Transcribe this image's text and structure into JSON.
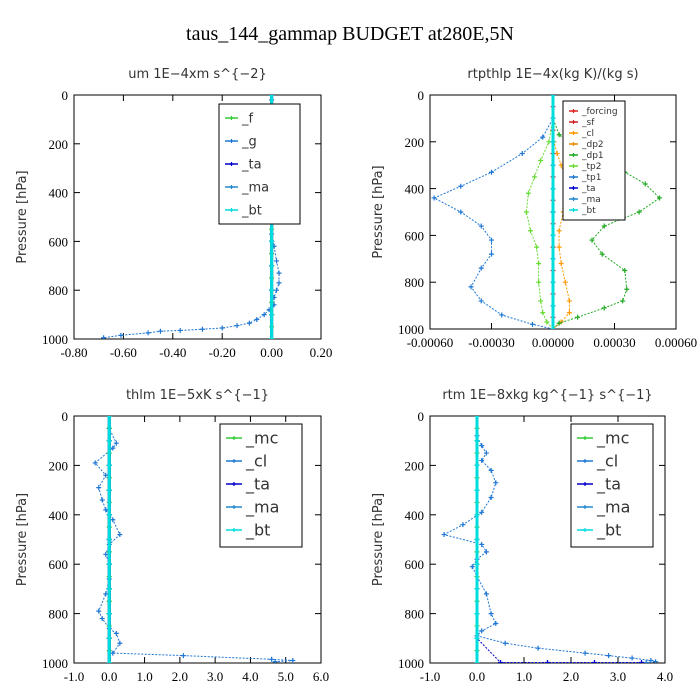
{
  "title": "taus_144_gammap  BUDGET at280E,5N",
  "chart_data": [
    {
      "type": "line",
      "title": "um   1E−4xm s^{−2}",
      "ylabel": "Pressure [hPa]",
      "xlim": [
        -0.8,
        0.2
      ],
      "ylim": [
        1000,
        0
      ],
      "xticks": [
        -0.8,
        -0.6,
        -0.4,
        -0.2,
        0.0,
        0.2
      ],
      "xtick_labels": [
        "-0.80",
        "-0.60",
        "-0.40",
        "-0.20",
        "0.00",
        "0.20"
      ],
      "yticks": [
        0,
        200,
        400,
        600,
        800,
        1000
      ],
      "ytick_labels": [
        "0",
        "200",
        "400",
        "600",
        "800",
        "1000"
      ],
      "legend": "top-right",
      "series": [
        {
          "name": "_f",
          "color": "#33cc33",
          "x": [
            0,
            0,
            0,
            0,
            0,
            0,
            0,
            0,
            0,
            0,
            0,
            0,
            0,
            0,
            0,
            0,
            0,
            0,
            0,
            0,
            0
          ],
          "y": [
            0,
            50,
            100,
            150,
            200,
            250,
            300,
            350,
            400,
            450,
            500,
            550,
            600,
            650,
            700,
            750,
            800,
            850,
            900,
            950,
            1000
          ]
        },
        {
          "name": "_g",
          "color": "#1f77d4",
          "x": [
            0,
            0,
            0,
            0.01,
            -0.03,
            0.02,
            -0.01,
            0.04,
            0.06,
            0.05,
            0.02,
            0.01,
            0.01,
            0,
            0.01,
            0,
            0,
            0.01,
            0.02,
            0.03,
            0.03,
            0.02,
            0.01,
            0.01,
            -0.01,
            -0.03,
            -0.06,
            -0.09,
            -0.14,
            -0.2,
            -0.28,
            -0.37,
            -0.45,
            -0.5,
            -0.61,
            -0.68
          ],
          "y": [
            0,
            20,
            50,
            80,
            110,
            130,
            150,
            180,
            210,
            240,
            280,
            320,
            370,
            420,
            470,
            520,
            570,
            620,
            680,
            730,
            770,
            800,
            830,
            860,
            880,
            900,
            920,
            935,
            945,
            955,
            960,
            965,
            968,
            975,
            985,
            995
          ]
        },
        {
          "name": "_ta",
          "color": "#0000cc",
          "x": [
            0,
            0,
            0,
            0,
            0,
            0,
            0,
            0,
            0,
            0,
            0
          ],
          "y": [
            0,
            100,
            200,
            300,
            400,
            500,
            600,
            700,
            800,
            900,
            1000
          ]
        },
        {
          "name": "_ma",
          "color": "#2288cc",
          "x": [
            0,
            0,
            0,
            0,
            0,
            0,
            0,
            0,
            0,
            0,
            0
          ],
          "y": [
            0,
            100,
            200,
            300,
            400,
            500,
            600,
            700,
            800,
            900,
            1000
          ]
        },
        {
          "name": "_bt",
          "color": "#00dddd",
          "x": [
            0,
            0,
            0,
            0,
            0,
            0,
            0,
            0,
            0,
            0,
            0
          ],
          "y": [
            0,
            100,
            200,
            300,
            400,
            500,
            600,
            700,
            800,
            900,
            1000
          ]
        }
      ]
    },
    {
      "type": "line",
      "title": "rtpthlp   1E−4x(kg K)/(kg s)",
      "ylabel": "Pressure [hPa]",
      "xlim": [
        -0.0006,
        0.0006
      ],
      "ylim": [
        1000,
        0
      ],
      "xticks": [
        -0.0006,
        -0.0003,
        0.0,
        0.0003,
        0.0006
      ],
      "xtick_labels": [
        "-0.00060",
        "-0.00030",
        "0.00000",
        "0.00030",
        "0.00060"
      ],
      "yticks": [
        0,
        200,
        400,
        600,
        800,
        1000
      ],
      "ytick_labels": [
        "0",
        "200",
        "400",
        "600",
        "800",
        "1000"
      ],
      "legend": "top-right",
      "series": [
        {
          "name": "_forcing",
          "color": "#dd2222",
          "x": [
            0,
            0,
            0,
            0,
            0,
            0,
            0,
            0,
            0,
            0,
            0,
            0,
            0,
            0,
            0,
            0,
            0,
            0,
            0,
            0,
            0
          ],
          "y": [
            0,
            50,
            100,
            150,
            200,
            250,
            300,
            350,
            400,
            450,
            500,
            550,
            600,
            650,
            700,
            750,
            800,
            850,
            900,
            950,
            1000
          ]
        },
        {
          "name": "_sf",
          "color": "#cc2222",
          "x": [
            0,
            0,
            0,
            0,
            0,
            0,
            0,
            0,
            0,
            0,
            0
          ],
          "y": [
            0,
            100,
            200,
            300,
            400,
            500,
            600,
            700,
            800,
            900,
            1000
          ]
        },
        {
          "name": "_cl",
          "color": "#ff9900",
          "x": [
            0,
            0,
            5e-06,
            2e-05,
            4e-05,
            6e-05,
            7e-05,
            5e-05,
            3e-05,
            3e-05,
            4e-05,
            6e-05,
            8e-05,
            8e-05,
            4e-05,
            0
          ],
          "y": [
            0,
            100,
            200,
            250,
            300,
            350,
            420,
            500,
            580,
            650,
            720,
            800,
            880,
            930,
            970,
            1000
          ]
        },
        {
          "name": "_dp2",
          "color": "#ee8800",
          "x": [
            0,
            0,
            0,
            0,
            0,
            0,
            0,
            0,
            0,
            0,
            0
          ],
          "y": [
            0,
            100,
            200,
            300,
            400,
            500,
            600,
            700,
            800,
            900,
            1000
          ]
        },
        {
          "name": "_dp1",
          "color": "#22aa22",
          "x": [
            0,
            0,
            3e-05,
            0.0001,
            0.00022,
            0.00035,
            0.00045,
            0.00052,
            0.00042,
            0.00025,
            0.00019,
            0.00024,
            0.00035,
            0.00036,
            0.00034,
            0.00025,
            0.00012,
            3e-05,
            0
          ],
          "y": [
            0,
            100,
            170,
            220,
            280,
            330,
            380,
            440,
            500,
            560,
            620,
            680,
            750,
            830,
            880,
            910,
            950,
            975,
            1000
          ]
        },
        {
          "name": "_tp2",
          "color": "#66dd33",
          "x": [
            0,
            0,
            -2e-05,
            -6e-05,
            -9e-05,
            -0.00012,
            -0.00013,
            -0.00011,
            -8e-05,
            -7e-05,
            -7e-05,
            -6e-05,
            -5e-05,
            -3e-05,
            0
          ],
          "y": [
            0,
            100,
            200,
            280,
            350,
            420,
            500,
            580,
            650,
            720,
            800,
            880,
            930,
            970,
            1000
          ]
        },
        {
          "name": "_tp1",
          "color": "#1f77d4",
          "x": [
            0,
            0,
            -5e-05,
            -0.00015,
            -0.0003,
            -0.00045,
            -0.00058,
            -0.00045,
            -0.00035,
            -0.0003,
            -0.0003,
            -0.00035,
            -0.0004,
            -0.00035,
            -0.00025,
            -0.0001,
            0
          ],
          "y": [
            0,
            100,
            180,
            250,
            330,
            390,
            440,
            500,
            560,
            620,
            680,
            740,
            820,
            880,
            940,
            980,
            1000
          ]
        },
        {
          "name": "_ta",
          "color": "#0000cc",
          "x": [
            0,
            0,
            0,
            0,
            0,
            0,
            0,
            0,
            0,
            0,
            0
          ],
          "y": [
            0,
            100,
            200,
            300,
            400,
            500,
            600,
            700,
            800,
            900,
            1000
          ]
        },
        {
          "name": "_ma",
          "color": "#2288cc",
          "x": [
            0,
            0,
            0,
            0,
            0,
            0,
            0,
            0,
            0,
            0,
            0
          ],
          "y": [
            0,
            100,
            200,
            300,
            400,
            500,
            600,
            700,
            800,
            900,
            1000
          ]
        },
        {
          "name": "_bt",
          "color": "#00dddd",
          "x": [
            0,
            0,
            0,
            0,
            0,
            0,
            0,
            0,
            0,
            0,
            0
          ],
          "y": [
            0,
            100,
            200,
            300,
            400,
            500,
            600,
            700,
            800,
            900,
            1000
          ]
        }
      ]
    },
    {
      "type": "line",
      "title": "thlm   1E−5xK s^{−1}",
      "ylabel": "Pressure [hPa]",
      "xlim": [
        -1.0,
        6.0
      ],
      "ylim": [
        1000,
        0
      ],
      "xticks": [
        -1,
        0,
        1,
        2,
        3,
        4,
        5,
        6
      ],
      "xtick_labels": [
        "-1.0",
        "0.0",
        "1.0",
        "2.0",
        "3.0",
        "4.0",
        "5.0",
        "6.0"
      ],
      "yticks": [
        0,
        200,
        400,
        600,
        800,
        1000
      ],
      "ytick_labels": [
        "0",
        "200",
        "400",
        "600",
        "800",
        "1000"
      ],
      "legend": "top-right",
      "series": [
        {
          "name": "_mc",
          "color": "#33cc33",
          "x": [
            0,
            0,
            0,
            0,
            0,
            0,
            0,
            0,
            0,
            0,
            0,
            0,
            0,
            0,
            0,
            0,
            0,
            0,
            0,
            0,
            0
          ],
          "y": [
            0,
            50,
            100,
            150,
            200,
            250,
            300,
            350,
            400,
            450,
            500,
            550,
            600,
            650,
            700,
            750,
            800,
            850,
            900,
            950,
            1000
          ]
        },
        {
          "name": "_cl",
          "color": "#1f77d4",
          "x": [
            0,
            0,
            0.2,
            0.1,
            -0.4,
            -0.1,
            -0.3,
            -0.2,
            -0.1,
            0.1,
            0.3,
            0,
            -0.1,
            0,
            0,
            -0.1,
            -0.3,
            -0.2,
            0,
            0.2,
            0.3,
            0.1,
            2.1,
            4.6,
            5.2,
            4.7
          ],
          "y": [
            0,
            50,
            110,
            130,
            190,
            240,
            290,
            340,
            380,
            420,
            480,
            520,
            560,
            600,
            660,
            720,
            790,
            820,
            860,
            880,
            920,
            960,
            970,
            985,
            990,
            995
          ]
        },
        {
          "name": "_ta",
          "color": "#0000cc",
          "x": [
            0,
            0,
            0,
            0,
            0,
            0,
            0,
            0,
            0,
            0,
            0
          ],
          "y": [
            0,
            100,
            200,
            300,
            400,
            500,
            600,
            700,
            800,
            900,
            1000
          ]
        },
        {
          "name": "_ma",
          "color": "#2288cc",
          "x": [
            0,
            0,
            0,
            0,
            0,
            0,
            0,
            0,
            0,
            0,
            0
          ],
          "y": [
            0,
            100,
            200,
            300,
            400,
            500,
            600,
            700,
            800,
            900,
            1000
          ]
        },
        {
          "name": "_bt",
          "color": "#00dddd",
          "x": [
            0,
            0,
            0,
            0,
            0,
            0,
            0,
            0,
            0,
            0,
            0
          ],
          "y": [
            0,
            100,
            200,
            300,
            400,
            500,
            600,
            700,
            800,
            900,
            1000
          ]
        }
      ]
    },
    {
      "type": "line",
      "title": "rtm   1E−8xkg kg^{−1} s^{−1}",
      "ylabel": "Pressure [hPa]",
      "xlim": [
        -1.0,
        4.0
      ],
      "ylim": [
        1000,
        0
      ],
      "xticks": [
        -1,
        0,
        1,
        2,
        3,
        4
      ],
      "xtick_labels": [
        "-1.0",
        "0.0",
        "1.0",
        "2.0",
        "3.0",
        "4.0"
      ],
      "yticks": [
        0,
        200,
        400,
        600,
        800,
        1000
      ],
      "ytick_labels": [
        "0",
        "200",
        "400",
        "600",
        "800",
        "1000"
      ],
      "legend": "top-right",
      "series": [
        {
          "name": "_mc",
          "color": "#33cc33",
          "x": [
            0,
            0,
            0,
            0,
            0,
            0,
            0,
            0,
            0,
            0,
            0,
            0,
            0,
            0,
            0,
            0,
            0,
            0,
            0,
            0,
            0
          ],
          "y": [
            0,
            50,
            100,
            150,
            200,
            250,
            300,
            350,
            400,
            450,
            500,
            550,
            600,
            650,
            700,
            750,
            800,
            850,
            900,
            950,
            1000
          ]
        },
        {
          "name": "_cl",
          "color": "#1f77d4",
          "x": [
            0,
            0,
            0.1,
            0.2,
            0.1,
            0.3,
            0.4,
            0.3,
            0.1,
            -0.3,
            -0.7,
            0.1,
            0.2,
            0,
            -0.1,
            0,
            0.2,
            0.3,
            0.4,
            0.1,
            0,
            0.6,
            1.3,
            2.3,
            2.8,
            3.3,
            3.7,
            3.8,
            3.6
          ],
          "y": [
            0,
            80,
            120,
            150,
            180,
            220,
            270,
            330,
            390,
            440,
            480,
            520,
            550,
            580,
            610,
            650,
            720,
            800,
            840,
            870,
            890,
            920,
            940,
            960,
            970,
            980,
            990,
            995,
            998
          ]
        },
        {
          "name": "_ta",
          "color": "#0000cc",
          "x": [
            0,
            0,
            0,
            0,
            0,
            0,
            0,
            0,
            0,
            0,
            0.5,
            1.5,
            2.5,
            3.5
          ],
          "y": [
            0,
            100,
            200,
            300,
            400,
            500,
            600,
            700,
            800,
            900,
            998,
            998,
            998,
            998
          ]
        },
        {
          "name": "_ma",
          "color": "#2288cc",
          "x": [
            0,
            0,
            0,
            0,
            0,
            0,
            0,
            0,
            0,
            0,
            0
          ],
          "y": [
            0,
            100,
            200,
            300,
            400,
            500,
            600,
            700,
            800,
            900,
            1000
          ]
        },
        {
          "name": "_bt",
          "color": "#00dddd",
          "x": [
            0,
            0,
            0,
            0,
            0,
            0,
            0,
            0,
            0,
            0,
            0
          ],
          "y": [
            0,
            100,
            200,
            300,
            400,
            500,
            600,
            700,
            800,
            900,
            1000
          ]
        }
      ]
    }
  ]
}
